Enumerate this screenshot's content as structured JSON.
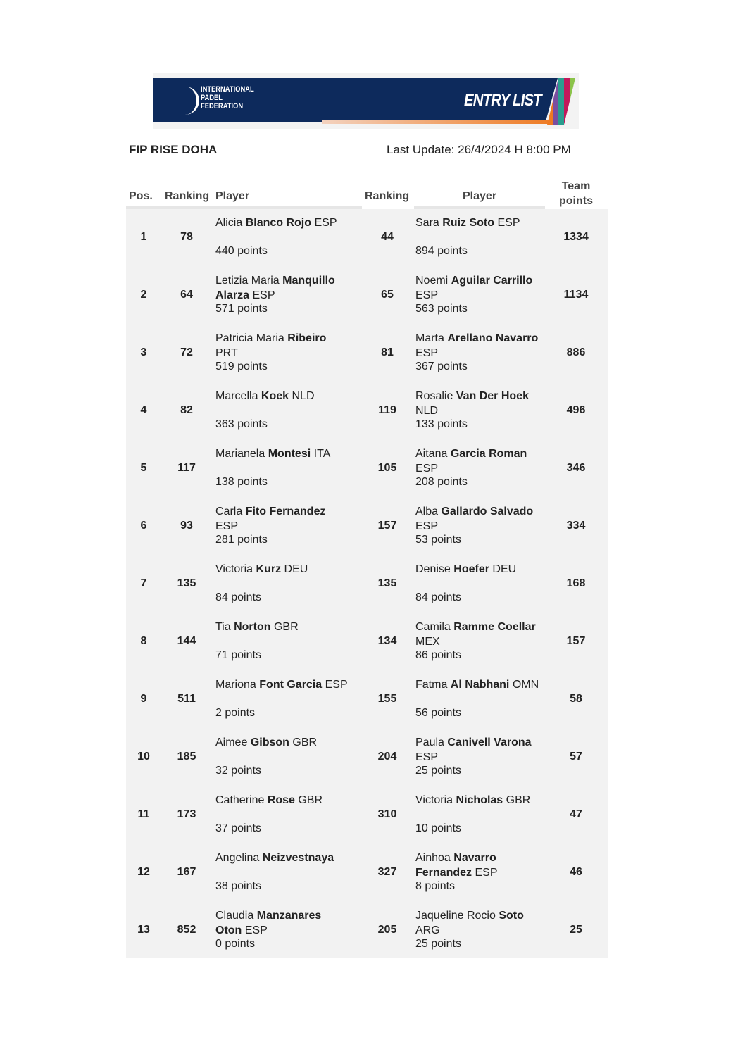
{
  "banner": {
    "org": "INTERNATIONAL PADEL FEDERATION",
    "title": "ENTRY LIST"
  },
  "tournament": "FIP RISE DOHA",
  "last_update": "Last Update: 26/4/2024 H 8:00 PM",
  "headers": {
    "pos": "Pos.",
    "ranking1": "Ranking",
    "player1": "Player",
    "ranking2": "Ranking",
    "player2": "Player",
    "team_points": "Team points"
  },
  "rows": [
    {
      "pos": "1",
      "r1": "78",
      "p1": {
        "first": "Alicia",
        "last": "Blanco Rojo",
        "country": "ESP",
        "points": "440 points"
      },
      "r2": "44",
      "p2": {
        "first": "Sara",
        "last": "Ruiz Soto",
        "country": "ESP",
        "points": "894 points"
      },
      "team": "1334"
    },
    {
      "pos": "2",
      "r1": "64",
      "p1": {
        "first": "Letizia Maria",
        "last": "Manquillo Alarza",
        "country": "ESP",
        "points": "571 points"
      },
      "r2": "65",
      "p2": {
        "first": "Noemi",
        "last": "Aguilar Carrillo",
        "country": "ESP",
        "points": "563 points"
      },
      "team": "1134"
    },
    {
      "pos": "3",
      "r1": "72",
      "p1": {
        "first": "Patricia Maria",
        "last": "Ribeiro",
        "country": "PRT",
        "points": "519 points"
      },
      "r2": "81",
      "p2": {
        "first": "Marta",
        "last": "Arellano Navarro",
        "country": "ESP",
        "points": "367 points"
      },
      "team": "886"
    },
    {
      "pos": "4",
      "r1": "82",
      "p1": {
        "first": "Marcella",
        "last": "Koek",
        "country": "NLD",
        "points": "363 points"
      },
      "r2": "119",
      "p2": {
        "first": "Rosalie",
        "last": "Van Der Hoek",
        "country": "NLD",
        "points": "133 points"
      },
      "team": "496"
    },
    {
      "pos": "5",
      "r1": "117",
      "p1": {
        "first": "Marianela",
        "last": "Montesi",
        "country": "ITA",
        "points": "138 points"
      },
      "r2": "105",
      "p2": {
        "first": "Aitana",
        "last": "Garcia Roman",
        "country": "ESP",
        "points": "208 points"
      },
      "team": "346"
    },
    {
      "pos": "6",
      "r1": "93",
      "p1": {
        "first": "Carla",
        "last": "Fito Fernandez",
        "country": "ESP",
        "points": "281 points"
      },
      "r2": "157",
      "p2": {
        "first": "Alba",
        "last": "Gallardo Salvado",
        "country": "ESP",
        "points": "53 points"
      },
      "team": "334"
    },
    {
      "pos": "7",
      "r1": "135",
      "p1": {
        "first": "Victoria",
        "last": "Kurz",
        "country": "DEU",
        "points": "84 points"
      },
      "r2": "135",
      "p2": {
        "first": "Denise",
        "last": "Hoefer",
        "country": "DEU",
        "points": "84 points"
      },
      "team": "168"
    },
    {
      "pos": "8",
      "r1": "144",
      "p1": {
        "first": "Tia",
        "last": "Norton",
        "country": "GBR",
        "points": "71 points"
      },
      "r2": "134",
      "p2": {
        "first": "Camila",
        "last": "Ramme Coellar",
        "country": "MEX",
        "points": "86 points"
      },
      "team": "157"
    },
    {
      "pos": "9",
      "r1": "511",
      "p1": {
        "first": "Mariona",
        "last": "Font Garcia",
        "country": "ESP",
        "points": "2 points"
      },
      "r2": "155",
      "p2": {
        "first": "Fatma",
        "last": "Al Nabhani",
        "country": "OMN",
        "points": "56 points"
      },
      "team": "58"
    },
    {
      "pos": "10",
      "r1": "185",
      "p1": {
        "first": "Aimee",
        "last": "Gibson",
        "country": "GBR",
        "points": "32 points"
      },
      "r2": "204",
      "p2": {
        "first": "Paula",
        "last": "Canivell Varona",
        "country": "ESP",
        "points": "25 points"
      },
      "team": "57"
    },
    {
      "pos": "11",
      "r1": "173",
      "p1": {
        "first": "Catherine",
        "last": "Rose",
        "country": "GBR",
        "points": "37 points"
      },
      "r2": "310",
      "p2": {
        "first": "Victoria",
        "last": "Nicholas",
        "country": "GBR",
        "points": "10 points"
      },
      "team": "47"
    },
    {
      "pos": "12",
      "r1": "167",
      "p1": {
        "first": "Angelina",
        "last": "Neizvestnaya",
        "country": "",
        "points": "38 points"
      },
      "r2": "327",
      "p2": {
        "first": "Ainhoa",
        "last": "Navarro Fernandez",
        "country": "ESP",
        "points": "8 points"
      },
      "team": "46"
    },
    {
      "pos": "13",
      "r1": "852",
      "p1": {
        "first": "Claudia",
        "last": "Manzanares Oton",
        "country": "ESP",
        "points": "0 points"
      },
      "r2": "205",
      "p2": {
        "first": "Jaqueline Rocio",
        "last": "Soto",
        "country": "ARG",
        "points": "25 points"
      },
      "team": "25"
    }
  ]
}
